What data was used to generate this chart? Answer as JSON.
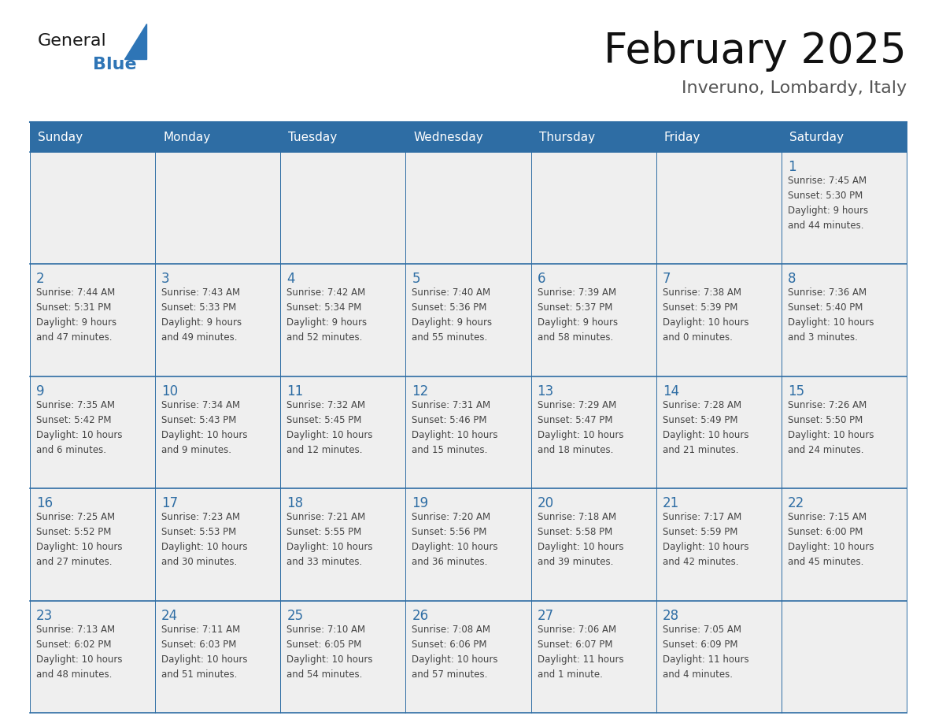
{
  "title": "February 2025",
  "subtitle": "Inveruno, Lombardy, Italy",
  "header_bg": "#2E6DA4",
  "header_text": "#FFFFFF",
  "cell_bg": "#EFEFEF",
  "border_color": "#2E6DA4",
  "day_num_color": "#2E6DA4",
  "text_color": "#444444",
  "days_of_week": [
    "Sunday",
    "Monday",
    "Tuesday",
    "Wednesday",
    "Thursday",
    "Friday",
    "Saturday"
  ],
  "calendar": [
    [
      null,
      null,
      null,
      null,
      null,
      null,
      {
        "day": "1",
        "lines": [
          "Sunrise: 7:45 AM",
          "Sunset: 5:30 PM",
          "Daylight: 9 hours",
          "and 44 minutes."
        ]
      }
    ],
    [
      {
        "day": "2",
        "lines": [
          "Sunrise: 7:44 AM",
          "Sunset: 5:31 PM",
          "Daylight: 9 hours",
          "and 47 minutes."
        ]
      },
      {
        "day": "3",
        "lines": [
          "Sunrise: 7:43 AM",
          "Sunset: 5:33 PM",
          "Daylight: 9 hours",
          "and 49 minutes."
        ]
      },
      {
        "day": "4",
        "lines": [
          "Sunrise: 7:42 AM",
          "Sunset: 5:34 PM",
          "Daylight: 9 hours",
          "and 52 minutes."
        ]
      },
      {
        "day": "5",
        "lines": [
          "Sunrise: 7:40 AM",
          "Sunset: 5:36 PM",
          "Daylight: 9 hours",
          "and 55 minutes."
        ]
      },
      {
        "day": "6",
        "lines": [
          "Sunrise: 7:39 AM",
          "Sunset: 5:37 PM",
          "Daylight: 9 hours",
          "and 58 minutes."
        ]
      },
      {
        "day": "7",
        "lines": [
          "Sunrise: 7:38 AM",
          "Sunset: 5:39 PM",
          "Daylight: 10 hours",
          "and 0 minutes."
        ]
      },
      {
        "day": "8",
        "lines": [
          "Sunrise: 7:36 AM",
          "Sunset: 5:40 PM",
          "Daylight: 10 hours",
          "and 3 minutes."
        ]
      }
    ],
    [
      {
        "day": "9",
        "lines": [
          "Sunrise: 7:35 AM",
          "Sunset: 5:42 PM",
          "Daylight: 10 hours",
          "and 6 minutes."
        ]
      },
      {
        "day": "10",
        "lines": [
          "Sunrise: 7:34 AM",
          "Sunset: 5:43 PM",
          "Daylight: 10 hours",
          "and 9 minutes."
        ]
      },
      {
        "day": "11",
        "lines": [
          "Sunrise: 7:32 AM",
          "Sunset: 5:45 PM",
          "Daylight: 10 hours",
          "and 12 minutes."
        ]
      },
      {
        "day": "12",
        "lines": [
          "Sunrise: 7:31 AM",
          "Sunset: 5:46 PM",
          "Daylight: 10 hours",
          "and 15 minutes."
        ]
      },
      {
        "day": "13",
        "lines": [
          "Sunrise: 7:29 AM",
          "Sunset: 5:47 PM",
          "Daylight: 10 hours",
          "and 18 minutes."
        ]
      },
      {
        "day": "14",
        "lines": [
          "Sunrise: 7:28 AM",
          "Sunset: 5:49 PM",
          "Daylight: 10 hours",
          "and 21 minutes."
        ]
      },
      {
        "day": "15",
        "lines": [
          "Sunrise: 7:26 AM",
          "Sunset: 5:50 PM",
          "Daylight: 10 hours",
          "and 24 minutes."
        ]
      }
    ],
    [
      {
        "day": "16",
        "lines": [
          "Sunrise: 7:25 AM",
          "Sunset: 5:52 PM",
          "Daylight: 10 hours",
          "and 27 minutes."
        ]
      },
      {
        "day": "17",
        "lines": [
          "Sunrise: 7:23 AM",
          "Sunset: 5:53 PM",
          "Daylight: 10 hours",
          "and 30 minutes."
        ]
      },
      {
        "day": "18",
        "lines": [
          "Sunrise: 7:21 AM",
          "Sunset: 5:55 PM",
          "Daylight: 10 hours",
          "and 33 minutes."
        ]
      },
      {
        "day": "19",
        "lines": [
          "Sunrise: 7:20 AM",
          "Sunset: 5:56 PM",
          "Daylight: 10 hours",
          "and 36 minutes."
        ]
      },
      {
        "day": "20",
        "lines": [
          "Sunrise: 7:18 AM",
          "Sunset: 5:58 PM",
          "Daylight: 10 hours",
          "and 39 minutes."
        ]
      },
      {
        "day": "21",
        "lines": [
          "Sunrise: 7:17 AM",
          "Sunset: 5:59 PM",
          "Daylight: 10 hours",
          "and 42 minutes."
        ]
      },
      {
        "day": "22",
        "lines": [
          "Sunrise: 7:15 AM",
          "Sunset: 6:00 PM",
          "Daylight: 10 hours",
          "and 45 minutes."
        ]
      }
    ],
    [
      {
        "day": "23",
        "lines": [
          "Sunrise: 7:13 AM",
          "Sunset: 6:02 PM",
          "Daylight: 10 hours",
          "and 48 minutes."
        ]
      },
      {
        "day": "24",
        "lines": [
          "Sunrise: 7:11 AM",
          "Sunset: 6:03 PM",
          "Daylight: 10 hours",
          "and 51 minutes."
        ]
      },
      {
        "day": "25",
        "lines": [
          "Sunrise: 7:10 AM",
          "Sunset: 6:05 PM",
          "Daylight: 10 hours",
          "and 54 minutes."
        ]
      },
      {
        "day": "26",
        "lines": [
          "Sunrise: 7:08 AM",
          "Sunset: 6:06 PM",
          "Daylight: 10 hours",
          "and 57 minutes."
        ]
      },
      {
        "day": "27",
        "lines": [
          "Sunrise: 7:06 AM",
          "Sunset: 6:07 PM",
          "Daylight: 11 hours",
          "and 1 minute."
        ]
      },
      {
        "day": "28",
        "lines": [
          "Sunrise: 7:05 AM",
          "Sunset: 6:09 PM",
          "Daylight: 11 hours",
          "and 4 minutes."
        ]
      },
      null
    ]
  ],
  "logo_general_color": "#1a1a1a",
  "logo_blue_color": "#2E75B6",
  "logo_triangle_color": "#2E75B6"
}
